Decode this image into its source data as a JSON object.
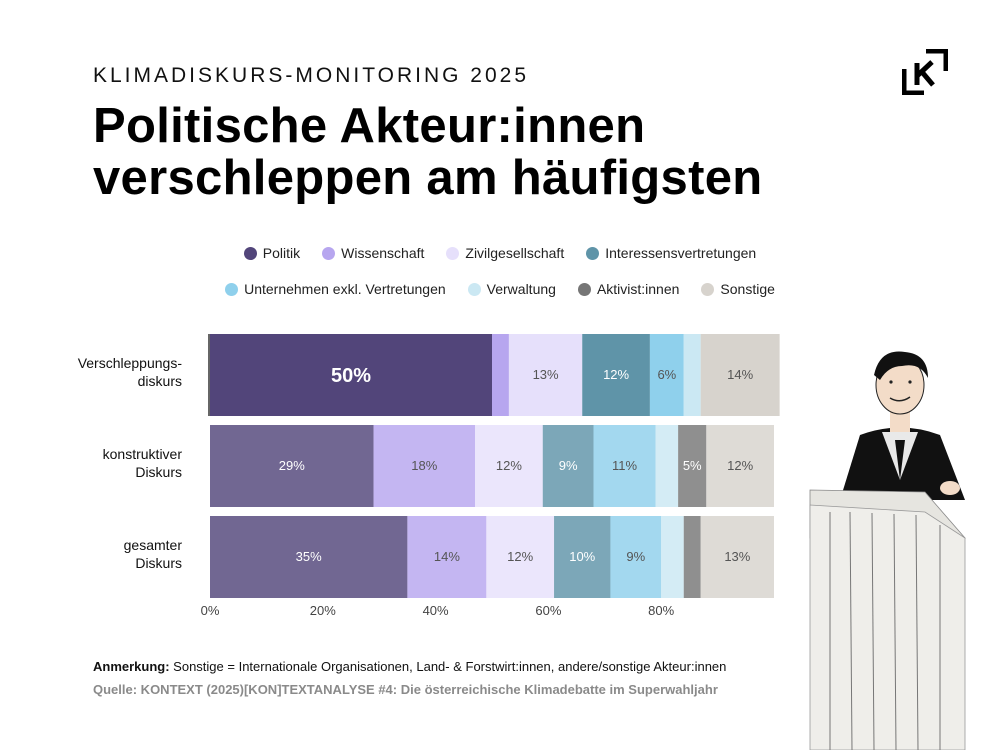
{
  "header": {
    "kicker": "KLIMADISKURS-MONITORING 2025",
    "title_line1": "Politische Akteur:innen",
    "title_line2": "verschleppen am häufigsten"
  },
  "note": {
    "label": "Anmerkung:",
    "text": " Sonstige = Internationale Organisationen, Land- & Forstwirt:innen, andere/sonstige Akteur:innen"
  },
  "source": "Quelle: KONTEXT (2025)[KON]TEXTANALYSE #4: Die österreichische Klimadebatte im Superwahljahr",
  "chart_data": {
    "type": "bar",
    "orientation": "horizontal",
    "stacked": true,
    "title": "Politische Akteur:innen verschleppen am häufigsten",
    "xlabel": "",
    "ylabel": "",
    "xlim": [
      0,
      100
    ],
    "x_ticks": [
      0,
      20,
      40,
      60,
      80
    ],
    "x_tick_labels": [
      "0%",
      "20%",
      "40%",
      "60%",
      "80%"
    ],
    "categories": [
      "Verschleppungs-diskurs",
      "konstruktiver Diskurs",
      "gesamter Diskurs"
    ],
    "category_label_lines": [
      [
        "Verschleppungs-",
        "diskurs"
      ],
      [
        "konstruktiver",
        "Diskurs"
      ],
      [
        "gesamter",
        "Diskurs"
      ]
    ],
    "legend_position": "top-center",
    "series": [
      {
        "name": "Politik",
        "color": "#52457a",
        "values": [
          50,
          29,
          35
        ]
      },
      {
        "name": "Wissenschaft",
        "color": "#b7a6ef",
        "values": [
          3,
          18,
          14
        ]
      },
      {
        "name": "Zivilgesellschaft",
        "color": "#e6e0fb",
        "values": [
          13,
          12,
          12
        ]
      },
      {
        "name": "Interessensvertretungen",
        "color": "#5f94a8",
        "values": [
          12,
          9,
          10
        ]
      },
      {
        "name": "Unternehmen exkl. Vertretungen",
        "color": "#8fd0ec",
        "values": [
          6,
          11,
          9
        ]
      },
      {
        "name": "Verwaltung",
        "color": "#cbe8f3",
        "values": [
          3,
          4,
          4
        ]
      },
      {
        "name": "Aktivist:innen",
        "color": "#767676",
        "values": [
          0,
          5,
          3
        ]
      },
      {
        "name": "Sonstige",
        "color": "#d7d3cd",
        "values": [
          14,
          12,
          13
        ]
      }
    ],
    "data_labels": [
      [
        "50%",
        "",
        "13%",
        "12%",
        "6%",
        "",
        "",
        "14%"
      ],
      [
        "29%",
        "18%",
        "12%",
        "9%",
        "11%",
        "",
        "5%",
        "12%"
      ],
      [
        "35%",
        "14%",
        "12%",
        "10%",
        "9%",
        "",
        "",
        "13%"
      ]
    ],
    "highlighted_row": 0
  }
}
